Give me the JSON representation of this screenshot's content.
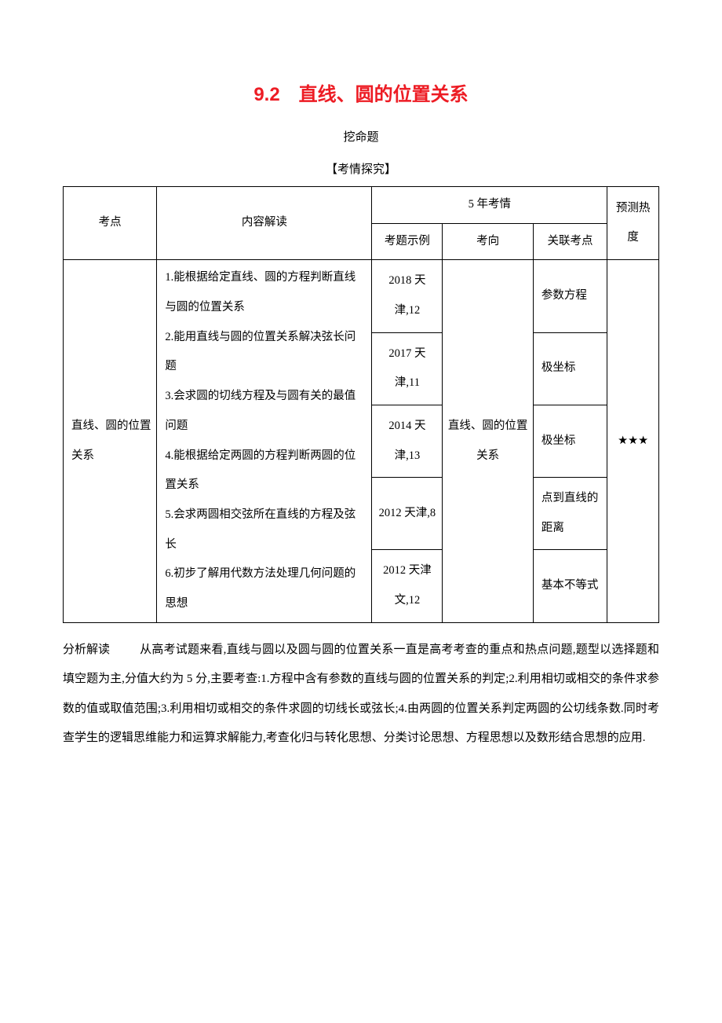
{
  "title": "9.2　直线、圆的位置关系",
  "subtitle": "挖命题",
  "section_label": "【考情探究】",
  "title_color": "#ed1c24",
  "text_color": "#000000",
  "background_color": "#ffffff",
  "border_color": "#000000",
  "base_fontsize_pt": 11,
  "title_fontsize_pt": 18,
  "table": {
    "header": {
      "kaodian": "考点",
      "neirong": "内容解读",
      "five_year": "5 年考情",
      "yuce": "预测热度",
      "kaoti": "考题示例",
      "kaoxiang": "考向",
      "guanlian": "关联考点"
    },
    "row": {
      "kaodian": "直线、圆的位置关系",
      "neirong": "1.能根据给定直线、圆的方程判断直线与圆的位置关系\n2.能用直线与圆的位置关系解决弦长问题\n3.会求圆的切线方程及与圆有关的最值问题\n4.能根据给定两圆的方程判断两圆的位置关系\n5.会求两圆相交弦所在直线的方程及弦长\n6.初步了解用代数方法处理几何问题的思想",
      "kaoti": [
        "2018 天津,12",
        "2017 天津,11",
        "2014 天津,13",
        "2012 天津,8",
        "2012 天津文,12"
      ],
      "kaoxiang": "直线、圆的位置关系",
      "guanlian": [
        "参数方程",
        "极坐标",
        "极坐标",
        "点到直线的距离",
        "基本不等式"
      ],
      "yuce": "★★★"
    }
  },
  "analysis_head": "分析解读",
  "analysis_body": "从高考试题来看,直线与圆以及圆与圆的位置关系一直是高考考查的重点和热点问题,题型以选择题和填空题为主,分值大约为 5 分,主要考查:1.方程中含有参数的直线与圆的位置关系的判定;2.利用相切或相交的条件求参数的值或取值范围;3.利用相切或相交的条件求圆的切线长或弦长;4.由两圆的位置关系判定两圆的公切线条数.同时考查学生的逻辑思维能力和运算求解能力,考查化归与转化思想、分类讨论思想、方程思想以及数形结合思想的应用."
}
